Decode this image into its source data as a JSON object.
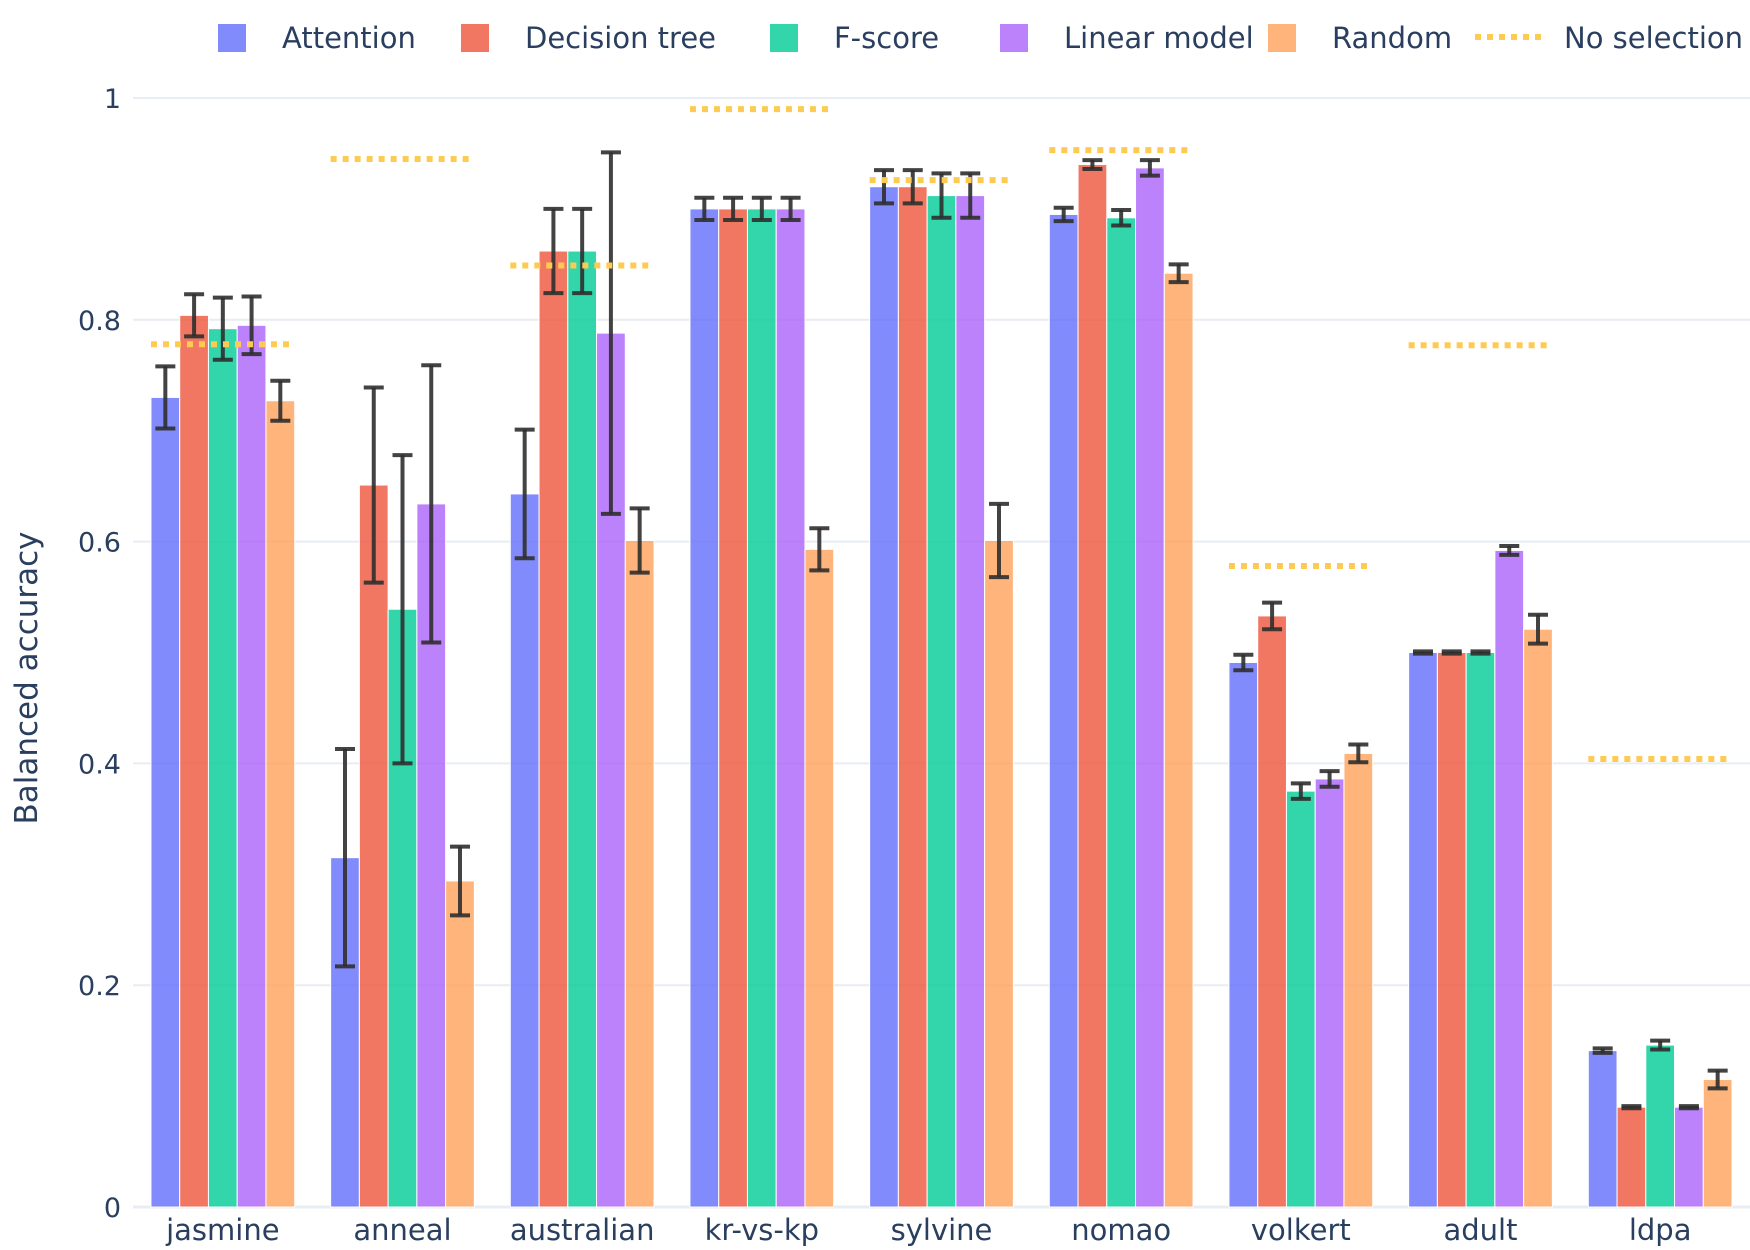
{
  "chart_data": {
    "type": "bar",
    "ylabel": "Balanced accuracy",
    "ylim": [
      0,
      1
    ],
    "yticks": [
      {
        "value": 0,
        "label": "0"
      },
      {
        "value": 0.2,
        "label": "0.2"
      },
      {
        "value": 0.4,
        "label": "0.4"
      },
      {
        "value": 0.6,
        "label": "0.6"
      },
      {
        "value": 0.8,
        "label": "0.8"
      },
      {
        "value": 1,
        "label": "1"
      }
    ],
    "grid": true,
    "legend_position": "top-right",
    "categories": [
      "jasmine",
      "anneal",
      "australian",
      "kr-vs-kp",
      "sylvine",
      "nomao",
      "volkert",
      "adult",
      "ldpa"
    ],
    "series": [
      {
        "name": "Attention",
        "color": "#636efa",
        "values": [
          0.73,
          0.315,
          0.643,
          0.9,
          0.92,
          0.895,
          0.491,
          0.5,
          0.141
        ],
        "errors": [
          0.028,
          0.098,
          0.058,
          0.01,
          0.015,
          0.006,
          0.007,
          0.001,
          0.002
        ]
      },
      {
        "name": "Decision tree",
        "color": "#ef553b",
        "values": [
          0.804,
          0.651,
          0.862,
          0.9,
          0.92,
          0.94,
          0.533,
          0.5,
          0.09
        ],
        "errors": [
          0.019,
          0.088,
          0.038,
          0.01,
          0.015,
          0.004,
          0.012,
          0.001,
          0.001
        ]
      },
      {
        "name": "F-score",
        "color": "#00cc96",
        "values": [
          0.792,
          0.539,
          0.862,
          0.9,
          0.912,
          0.892,
          0.375,
          0.5,
          0.146
        ],
        "errors": [
          0.028,
          0.139,
          0.038,
          0.01,
          0.02,
          0.007,
          0.007,
          0.001,
          0.004
        ]
      },
      {
        "name": "Linear model",
        "color": "#ab63fa",
        "values": [
          0.795,
          0.634,
          0.788,
          0.9,
          0.912,
          0.937,
          0.386,
          0.592,
          0.09
        ],
        "errors": [
          0.026,
          0.125,
          0.163,
          0.01,
          0.02,
          0.007,
          0.007,
          0.004,
          0.001
        ]
      },
      {
        "name": "Random",
        "color": "#ffa15a",
        "values": [
          0.727,
          0.294,
          0.601,
          0.593,
          0.601,
          0.842,
          0.409,
          0.521,
          0.115
        ],
        "errors": [
          0.018,
          0.031,
          0.029,
          0.019,
          0.033,
          0.008,
          0.008,
          0.013,
          0.008
        ]
      }
    ],
    "reference": {
      "name": "No selection",
      "color": "#fecb52",
      "values": [
        0.778,
        0.945,
        0.849,
        0.99,
        0.926,
        0.953,
        0.578,
        0.777,
        0.404
      ]
    }
  }
}
